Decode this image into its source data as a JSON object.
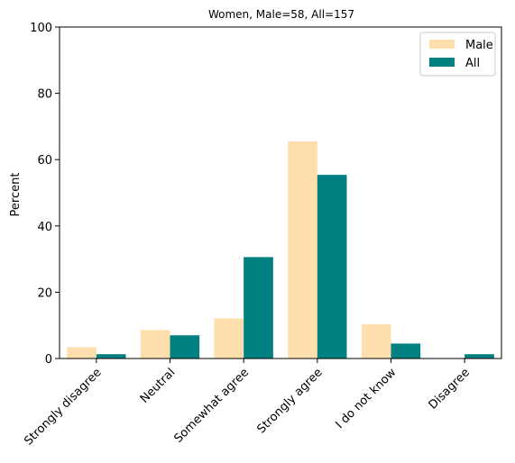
{
  "chart_data": {
    "type": "bar",
    "title": "Women, Male=58, All=157",
    "xlabel": "",
    "ylabel": "Percent",
    "ylim": [
      0,
      100
    ],
    "yticks": [
      0,
      20,
      40,
      60,
      80,
      100
    ],
    "categories": [
      "Strongly disagree",
      "Neutral",
      "Somewhat agree",
      "Strongly agree",
      "I do not know",
      "Disagree"
    ],
    "series": [
      {
        "name": "Male",
        "color": "#FFDEAD",
        "values": [
          3.4,
          8.6,
          12.1,
          65.5,
          10.3,
          0.0
        ]
      },
      {
        "name": "All",
        "color": "#008080",
        "values": [
          1.3,
          7.0,
          30.6,
          55.4,
          4.5,
          1.3
        ]
      }
    ],
    "legend": "top-right",
    "grid": false
  }
}
